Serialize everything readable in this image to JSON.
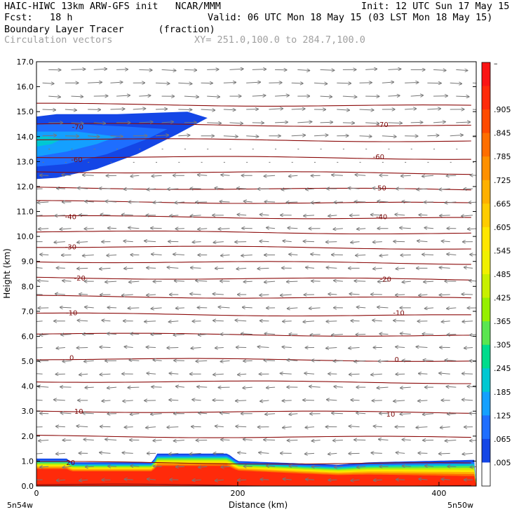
{
  "header": {
    "line1_left": "HAIC-HIWC 13km ARW-GFS init   NCAR/MMM",
    "line1_right": "Init: 12 UTC Sun 17 May 15",
    "line2_left": "Fcst:   18 h",
    "line2_right": "Valid: 06 UTC Mon 18 May 15 (03 LST Mon 18 May 15)",
    "line3_left": "Boundary Layer Tracer      (fraction)",
    "line4_left": "Circulation vectors",
    "line4_right": "XY= 251.0,100.0 to 284.7,100.0"
  },
  "chart_data": {
    "type": "cross-section",
    "xlabel": "Distance (km)",
    "ylabel": "Height (km)",
    "xlim": [
      0,
      437
    ],
    "ylim": [
      0,
      17
    ],
    "x_ticks": [
      {
        "value": 0,
        "label": "0"
      },
      {
        "value": 200,
        "label": "200"
      },
      {
        "value": 400,
        "label": "400"
      }
    ],
    "x_endpoint_labels": {
      "left": "5n54w",
      "right": "5n50w"
    },
    "y_ticks": [
      {
        "value": 0,
        "label": "0.0"
      },
      {
        "value": 1,
        "label": "1.0"
      },
      {
        "value": 2,
        "label": "2.0"
      },
      {
        "value": 3,
        "label": "3.0"
      },
      {
        "value": 4,
        "label": "4.0"
      },
      {
        "value": 5,
        "label": "5.0"
      },
      {
        "value": 6,
        "label": "6.0"
      },
      {
        "value": 7,
        "label": "7.0"
      },
      {
        "value": 8,
        "label": "8.0"
      },
      {
        "value": 9,
        "label": "9.0"
      },
      {
        "value": 10,
        "label": "10.0"
      },
      {
        "value": 11,
        "label": "11.0"
      },
      {
        "value": 12,
        "label": "12.0"
      },
      {
        "value": 13,
        "label": "13.0"
      },
      {
        "value": 14,
        "label": "14.0"
      },
      {
        "value": 15,
        "label": "15.0"
      },
      {
        "value": 16,
        "label": "16.0"
      },
      {
        "value": 17,
        "label": "17.0"
      }
    ],
    "colorbar": {
      "labels": [
        "–",
        ".905",
        ".845",
        ".785",
        ".725",
        ".665",
        ".605",
        ".545",
        ".485",
        ".425",
        ".365",
        ".305",
        ".245",
        ".185",
        ".125",
        ".065",
        ".005"
      ],
      "colors": [
        "#fa1414",
        "#ff2a0a",
        "#ff4a00",
        "#ff6e00",
        "#ff9000",
        "#ffb000",
        "#ffcc00",
        "#ffe600",
        "#f0f000",
        "#c8f000",
        "#96f000",
        "#5ae650",
        "#00dc8c",
        "#00c8d2",
        "#14a0ff",
        "#1e6eff",
        "#1446e6",
        "#ffffff"
      ]
    },
    "isotherm_labels": [
      {
        "x": 34,
        "z": 0.95,
        "label": "20"
      },
      {
        "x": 42,
        "z": 3.0,
        "label": "10"
      },
      {
        "x": 352,
        "z": 2.9,
        "label": "10"
      },
      {
        "x": 35,
        "z": 5.15,
        "label": "0"
      },
      {
        "x": 358,
        "z": 5.08,
        "label": "0"
      },
      {
        "x": 35,
        "z": 6.95,
        "label": "-10"
      },
      {
        "x": 360,
        "z": 6.95,
        "label": "-10"
      },
      {
        "x": 43,
        "z": 8.35,
        "label": "-20"
      },
      {
        "x": 347,
        "z": 8.3,
        "label": "-20"
      },
      {
        "x": 34,
        "z": 9.6,
        "label": "-30"
      },
      {
        "x": 34,
        "z": 10.8,
        "label": "-40"
      },
      {
        "x": 343,
        "z": 10.8,
        "label": "-40"
      },
      {
        "x": 342,
        "z": 11.95,
        "label": "-50"
      },
      {
        "x": 40,
        "z": 13.1,
        "label": "-60"
      },
      {
        "x": 340,
        "z": 13.2,
        "label": "-60"
      },
      {
        "x": 41,
        "z": 14.4,
        "label": "-70"
      },
      {
        "x": 344,
        "z": 14.5,
        "label": "-70"
      }
    ],
    "isotherm_levels_km": [
      0.05,
      0.95,
      2.0,
      3.0,
      4.2,
      5.1,
      6.1,
      6.9,
      7.6,
      8.35,
      9.0,
      9.6,
      10.2,
      10.8,
      11.4,
      11.95,
      12.6,
      13.2,
      13.9,
      14.5,
      15.3
    ],
    "tracer_surface_layer": {
      "description_level": "boundary layer tracer ~1.0 near surface",
      "top_km": [
        [
          0,
          1.1
        ],
        [
          30,
          1.1
        ],
        [
          35,
          0.95
        ],
        [
          115,
          0.95
        ],
        [
          120,
          1.3
        ],
        [
          190,
          1.3
        ],
        [
          200,
          1.0
        ],
        [
          300,
          0.85
        ],
        [
          330,
          0.95
        ],
        [
          437,
          1.05
        ]
      ]
    },
    "tracer_upper_plume": {
      "x_range": [
        0,
        175
      ],
      "z_range": [
        12.3,
        15.0
      ]
    },
    "wind_vectors": "circulation vectors, easterly (leftward) below ~13 km, westerly (rightward) above ~13.5 km"
  }
}
